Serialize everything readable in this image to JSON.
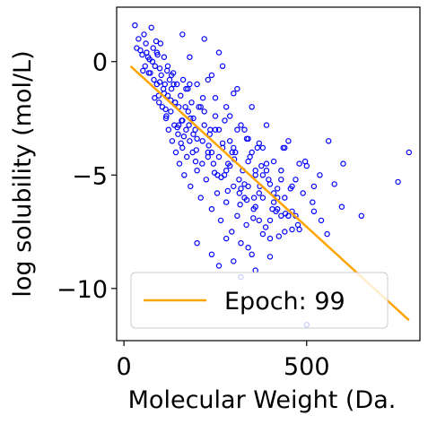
{
  "chart_data": {
    "type": "scatter",
    "title": "",
    "xlabel": "Molecular Weight (Da.",
    "ylabel": "log solubility (mol/L)",
    "xlim": [
      -20,
      810
    ],
    "ylim": [
      -12.3,
      2.4
    ],
    "xticks": [
      0,
      500
    ],
    "xtick_labels": [
      "0",
      "500"
    ],
    "yticks": [
      0,
      -5,
      -10
    ],
    "ytick_labels": [
      "0",
      "−5",
      "−10"
    ],
    "grid": false,
    "legend_position": "lower-left",
    "colors": {
      "points": "#0000ff",
      "fit_line": "#ffa500",
      "axes": "#000000"
    },
    "series": [
      {
        "kind": "scatter",
        "marker": "open-circle",
        "x": [
          30,
          40,
          45,
          50,
          55,
          60,
          58,
          62,
          70,
          72,
          75,
          78,
          80,
          82,
          85,
          88,
          90,
          92,
          95,
          98,
          100,
          102,
          105,
          108,
          110,
          112,
          115,
          118,
          120,
          122,
          125,
          128,
          130,
          132,
          135,
          138,
          140,
          142,
          145,
          148,
          150,
          152,
          155,
          158,
          160,
          162,
          165,
          168,
          170,
          172,
          175,
          178,
          180,
          182,
          185,
          188,
          190,
          195,
          200,
          205,
          210,
          215,
          220,
          225,
          230,
          235,
          240,
          245,
          250,
          255,
          260,
          265,
          270,
          275,
          280,
          285,
          290,
          295,
          300,
          305,
          310,
          315,
          320,
          325,
          330,
          335,
          340,
          345,
          350,
          355,
          360,
          365,
          370,
          380,
          390,
          400,
          410,
          420,
          430,
          440,
          450,
          460,
          470,
          480,
          500,
          520,
          560,
          600,
          650,
          750,
          780,
          68,
          96,
          116,
          136,
          156,
          176,
          196,
          216,
          236,
          256,
          276,
          296,
          316,
          336,
          356,
          376,
          396,
          416,
          436,
          456,
          476,
          496,
          516,
          536,
          556,
          576,
          596,
          90,
          110,
          130,
          150,
          170,
          190,
          210,
          230,
          250,
          270,
          290,
          310,
          330,
          350,
          370,
          390,
          410,
          430,
          450,
          120,
          140,
          160,
          180,
          200,
          220,
          240,
          260,
          280,
          300,
          320,
          340,
          360,
          380,
          400,
          420,
          440,
          460,
          480,
          160,
          180,
          200,
          220,
          240,
          260,
          280,
          300,
          320,
          340,
          360,
          380,
          400,
          420,
          200,
          240,
          260,
          280,
          300,
          320,
          340,
          360,
          380,
          400,
          430,
          460,
          490,
          520,
          540,
          230,
          250,
          270,
          290,
          310,
          330,
          350,
          370,
          390,
          410,
          440,
          470,
          500,
          35,
          52,
          66,
          84,
          98,
          114,
          128,
          146,
          164,
          182,
          198,
          214,
          232,
          248,
          266,
          284,
          302,
          318,
          336,
          354,
          372,
          388,
          406,
          424,
          442
        ],
        "y": [
          1.6,
          1.0,
          0.5,
          0.3,
          1.2,
          0.8,
          -0.2,
          0.4,
          0.1,
          -0.5,
          1.5,
          0.0,
          0.6,
          -0.8,
          -0.2,
          0.9,
          -1.0,
          0.3,
          -1.5,
          -0.3,
          0.8,
          -0.6,
          -2.0,
          -1.2,
          0.2,
          -1.0,
          -2.5,
          -0.4,
          -1.5,
          -3.0,
          -0.8,
          -2.2,
          -1.2,
          -3.5,
          -0.5,
          -2.8,
          -1.8,
          -4.0,
          -1.0,
          -3.2,
          -2.0,
          -4.5,
          -1.5,
          -2.6,
          -3.8,
          -0.8,
          -5.0,
          -2.0,
          -3.0,
          -4.2,
          -1.2,
          -2.8,
          -3.5,
          -5.5,
          -1.8,
          -4.0,
          -2.5,
          -3.0,
          -4.8,
          -2.0,
          -6.0,
          -3.5,
          -2.8,
          -5.2,
          -4.0,
          -3.2,
          -6.5,
          -4.5,
          -3.0,
          -5.8,
          -4.2,
          -7.0,
          -3.8,
          -5.0,
          -6.2,
          -4.5,
          -3.5,
          -7.5,
          -5.5,
          -4.0,
          -6.8,
          -5.2,
          -8.0,
          -4.8,
          -6.0,
          -7.2,
          -5.5,
          -4.2,
          -8.5,
          -6.5,
          -5.0,
          -3.8,
          -7.0,
          -6.0,
          -4.5,
          -7.8,
          -5.8,
          -6.5,
          -4.8,
          -7.5,
          -3.5,
          -5.5,
          -6.8,
          -4.5,
          -11.6,
          -5.5,
          -3.5,
          -4.5,
          -6.8,
          -5.3,
          -4.0,
          -0.5,
          -1.8,
          -2.4,
          -1.0,
          -3.6,
          -2.2,
          -4.4,
          -1.6,
          -3.0,
          -5.0,
          -2.6,
          -4.0,
          -5.8,
          -3.4,
          -6.0,
          -4.6,
          -5.2,
          -6.6,
          -3.8,
          -5.6,
          -7.2,
          -4.4,
          -6.2,
          -5.0,
          -7.6,
          -5.4,
          -6.4,
          0.4,
          -1.4,
          -0.6,
          -2.8,
          -1.2,
          -3.2,
          -2.0,
          -4.2,
          -2.4,
          -3.6,
          -4.6,
          -3.0,
          -5.4,
          -4.0,
          -5.8,
          -4.8,
          -6.2,
          -5.2,
          -6.8,
          -0.2,
          -1.8,
          -2.6,
          -1.0,
          -3.4,
          -2.2,
          -4.0,
          -3.0,
          -4.8,
          -3.8,
          -5.6,
          -4.4,
          -6.4,
          -5.0,
          -7.0,
          -5.6,
          -6.0,
          -6.6,
          -7.4,
          1.2,
          0.2,
          -1.0,
          1.0,
          -0.6,
          0.4,
          -2.0,
          -1.4,
          -2.8,
          -3.4,
          -4.8,
          -3.8,
          -5.4,
          -6.0,
          -8.0,
          -8.5,
          -9.0,
          -7.8,
          -8.8,
          -9.5,
          -8.2,
          -9.2,
          -7.6,
          -8.6,
          -6.8,
          -7.4,
          -5.8,
          -6.6,
          -7.0,
          -0.8,
          -1.6,
          -0.2,
          -2.4,
          -1.2,
          -3.0,
          -2.0,
          -3.6,
          -2.8,
          -4.4,
          -3.8,
          -5.2,
          -4.6,
          0.6,
          -0.4,
          0.2,
          -1.6,
          -0.9,
          -2.1,
          -1.7,
          -2.9,
          -3.3,
          -2.5,
          -3.9,
          -4.5,
          -3.7,
          -4.9,
          -5.1,
          -5.7,
          -4.3,
          -6.3,
          -6.1,
          -6.9,
          -5.5,
          -7.3,
          -6.5,
          -7.7,
          -6.7
        ]
      },
      {
        "kind": "line",
        "name": "Epoch: 99",
        "x": [
          18,
          780
        ],
        "y": [
          -0.2,
          -11.4
        ]
      }
    ]
  }
}
